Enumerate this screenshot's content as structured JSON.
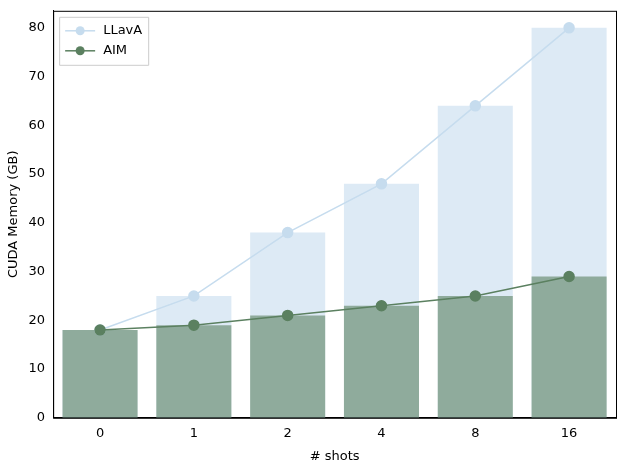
{
  "chart_data": {
    "type": "bar",
    "x_label": "# shots",
    "y_label": "CUDA Memory (GB)",
    "categories": [
      "0",
      "1",
      "2",
      "4",
      "8",
      "16"
    ],
    "series": [
      {
        "name": "LLavA",
        "color": "#c6dcee",
        "marker": "circle",
        "values": [
          18,
          25,
          38,
          48,
          64,
          80
        ]
      },
      {
        "name": "AIM",
        "color": "#5b8060",
        "marker": "circle",
        "values": [
          18,
          19,
          21,
          23,
          25,
          29
        ]
      }
    ],
    "ylim": [
      0,
      83.5
    ],
    "yticks": [
      0,
      10,
      20,
      30,
      40,
      50,
      60,
      70,
      80
    ],
    "grid": false,
    "legend": "upper left"
  }
}
